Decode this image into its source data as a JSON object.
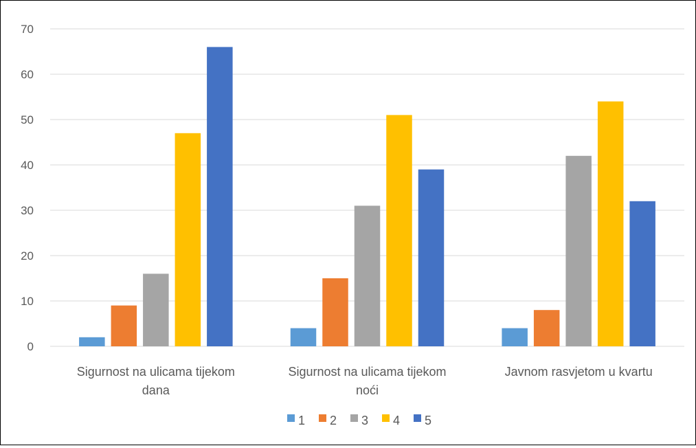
{
  "chart_data": {
    "type": "bar",
    "categories": [
      [
        "Sigurnost na ulicama tijekom",
        "dana"
      ],
      [
        "Sigurnost na ulicama tijekom",
        "noći"
      ],
      [
        "Javnom rasvjetom u kvartu"
      ]
    ],
    "series": [
      {
        "name": "1",
        "color": "#5B9BD5",
        "values": [
          2,
          4,
          4
        ]
      },
      {
        "name": "2",
        "color": "#ED7D31",
        "values": [
          9,
          15,
          8
        ]
      },
      {
        "name": "3",
        "color": "#A5A5A5",
        "values": [
          16,
          31,
          42
        ]
      },
      {
        "name": "4",
        "color": "#FFC000",
        "values": [
          47,
          51,
          54
        ]
      },
      {
        "name": "5",
        "color": "#4472C4",
        "values": [
          66,
          39,
          32
        ]
      }
    ],
    "yticks": [
      "0",
      "10",
      "20",
      "30",
      "40",
      "50",
      "60",
      "70"
    ],
    "ylim": [
      0,
      70
    ],
    "grid": true,
    "legend": "bottom",
    "title": "",
    "xlabel": "",
    "ylabel": ""
  }
}
